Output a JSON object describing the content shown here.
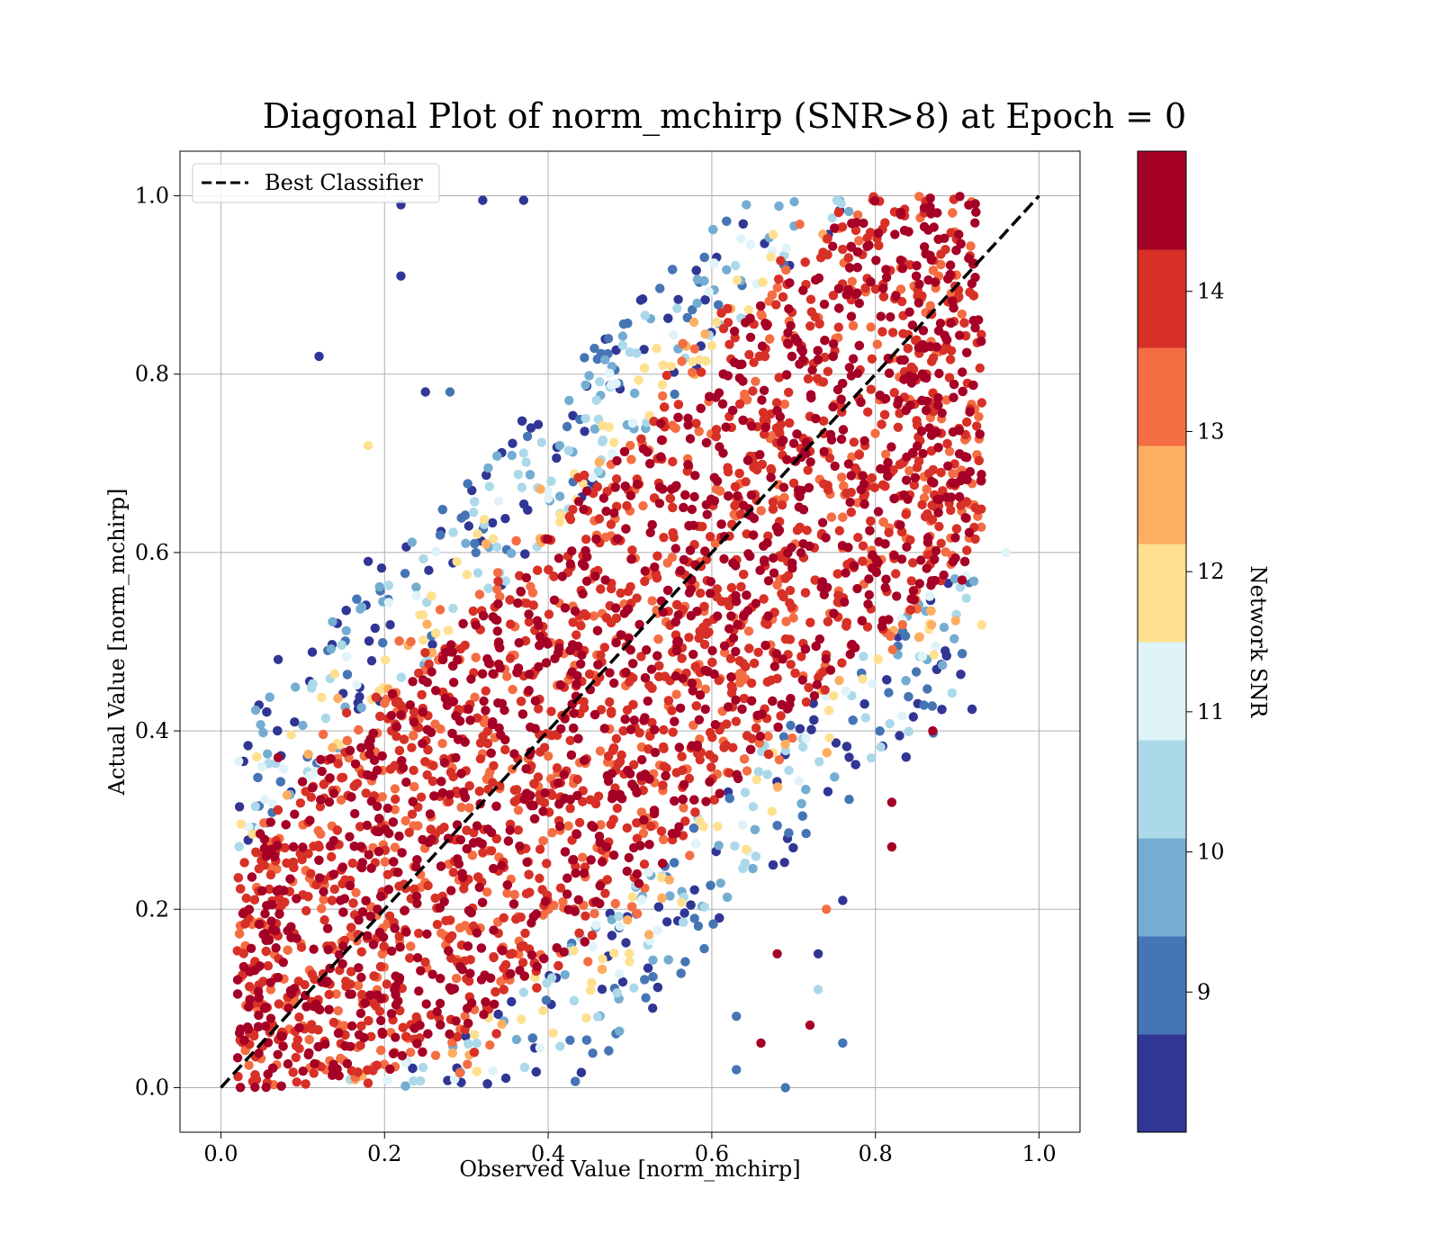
{
  "chart_data": {
    "type": "scatter",
    "title": "Diagonal Plot of norm_mchirp (SNR>8) at Epoch = 0",
    "xlabel": "Observed Value [norm_mchirp]",
    "ylabel": "Actual Value [norm_mchirp]",
    "xlim": [
      -0.05,
      1.05
    ],
    "ylim": [
      -0.05,
      1.05
    ],
    "xticks": [
      "0.0",
      "0.2",
      "0.4",
      "0.6",
      "0.8",
      "1.0"
    ],
    "yticks": [
      "0.0",
      "0.2",
      "0.4",
      "0.6",
      "0.8",
      "1.0"
    ],
    "grid": true,
    "legend": {
      "position": "top-left",
      "entries": [
        {
          "label": "Best Classifier",
          "style": "dashed",
          "color": "#000000"
        }
      ]
    },
    "reference_line": {
      "label": "Best Classifier",
      "x": [
        0.0,
        1.0
      ],
      "y": [
        0.0,
        1.0
      ]
    },
    "colorbar": {
      "label": "Network SNR",
      "range": [
        8,
        15
      ],
      "ticks": [
        "9",
        "10",
        "11",
        "12",
        "13",
        "14"
      ],
      "colors": [
        "#313695",
        "#4575b4",
        "#74add1",
        "#abd9e9",
        "#e0f3f8",
        "#fee090",
        "#fdae61",
        "#f46d43",
        "#d73027",
        "#a50026"
      ]
    },
    "dense_band": [
      {
        "x": 0.03,
        "y_low": 0.0,
        "y_high": 0.27
      },
      {
        "x": 0.1,
        "y_low": 0.0,
        "y_high": 0.34
      },
      {
        "x": 0.2,
        "y_low": 0.02,
        "y_high": 0.43
      },
      {
        "x": 0.3,
        "y_low": 0.06,
        "y_high": 0.52
      },
      {
        "x": 0.4,
        "y_low": 0.14,
        "y_high": 0.62
      },
      {
        "x": 0.5,
        "y_low": 0.22,
        "y_high": 0.72
      },
      {
        "x": 0.6,
        "y_low": 0.32,
        "y_high": 0.82
      },
      {
        "x": 0.7,
        "y_low": 0.42,
        "y_high": 0.92
      },
      {
        "x": 0.8,
        "y_low": 0.5,
        "y_high": 1.0
      },
      {
        "x": 0.9,
        "y_low": 0.58,
        "y_high": 1.0
      }
    ],
    "outliers": [
      {
        "x": 0.12,
        "y": 0.82,
        "snr": 8.5
      },
      {
        "x": 0.22,
        "y": 0.91,
        "snr": 8.5
      },
      {
        "x": 0.22,
        "y": 0.99,
        "snr": 8.5
      },
      {
        "x": 0.32,
        "y": 0.995,
        "snr": 8.5
      },
      {
        "x": 0.37,
        "y": 0.995,
        "snr": 8.5
      },
      {
        "x": 0.07,
        "y": 0.48,
        "snr": 8.5
      },
      {
        "x": 0.09,
        "y": 0.41,
        "snr": 8.5
      },
      {
        "x": 0.18,
        "y": 0.72,
        "snr": 12.2
      },
      {
        "x": 0.18,
        "y": 0.59,
        "snr": 8.5
      },
      {
        "x": 0.25,
        "y": 0.78,
        "snr": 8.5
      },
      {
        "x": 0.28,
        "y": 0.78,
        "snr": 9.3
      },
      {
        "x": 0.07,
        "y": 0.37,
        "snr": 14.3
      },
      {
        "x": 0.05,
        "y": 0.36,
        "snr": 11.2
      },
      {
        "x": 0.96,
        "y": 0.6,
        "snr": 11.2
      },
      {
        "x": 0.73,
        "y": 0.15,
        "snr": 8.5
      },
      {
        "x": 0.73,
        "y": 0.11,
        "snr": 10.4
      },
      {
        "x": 0.72,
        "y": 0.07,
        "snr": 14.3
      },
      {
        "x": 0.76,
        "y": 0.05,
        "snr": 9.3
      },
      {
        "x": 0.68,
        "y": 0.15,
        "snr": 14.3
      },
      {
        "x": 0.82,
        "y": 0.27,
        "snr": 14.3
      },
      {
        "x": 0.82,
        "y": 0.32,
        "snr": 14.3
      },
      {
        "x": 0.74,
        "y": 0.2,
        "snr": 13.5
      },
      {
        "x": 0.76,
        "y": 0.21,
        "snr": 8.5
      },
      {
        "x": 0.69,
        "y": 0.0,
        "snr": 9.3
      },
      {
        "x": 0.63,
        "y": 0.02,
        "snr": 9.3
      },
      {
        "x": 0.63,
        "y": 0.08,
        "snr": 9.3
      },
      {
        "x": 0.87,
        "y": 0.4,
        "snr": 14.8
      },
      {
        "x": 0.66,
        "y": 0.05,
        "snr": 14.3
      }
    ]
  }
}
